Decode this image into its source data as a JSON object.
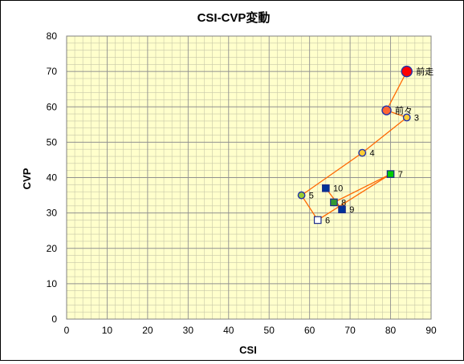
{
  "chart_data": {
    "type": "scatter",
    "title": "CSI-CVP変動",
    "xlabel": "CSI",
    "ylabel": "CVP",
    "xlim": [
      0,
      90
    ],
    "ylim": [
      0,
      80
    ],
    "x_ticks": [
      0,
      10,
      20,
      30,
      40,
      50,
      60,
      70,
      80,
      90
    ],
    "y_ticks": [
      0,
      10,
      20,
      30,
      40,
      50,
      60,
      70,
      80
    ],
    "grid": true,
    "plot_background": "#FFFFCC",
    "line_color": "#FF6600",
    "points": [
      {
        "label": "前走",
        "x": 84,
        "y": 70,
        "marker": "circle",
        "fill": "#FF0000",
        "size": "large"
      },
      {
        "label": "前々",
        "x": 79,
        "y": 59,
        "marker": "circle",
        "fill": "#FF6633",
        "size": "medium"
      },
      {
        "label": "3",
        "x": 84,
        "y": 57,
        "marker": "circle",
        "fill": "#FFCC33",
        "size": "small"
      },
      {
        "label": "4",
        "x": 73,
        "y": 47,
        "marker": "circle",
        "fill": "#FFCC33",
        "size": "small"
      },
      {
        "label": "5",
        "x": 58,
        "y": 35,
        "marker": "circle",
        "fill": "#99CC33",
        "size": "small"
      },
      {
        "label": "6",
        "x": 62,
        "y": 28,
        "marker": "square",
        "fill": "#FFFFFF",
        "size": "small"
      },
      {
        "label": "7",
        "x": 80,
        "y": 41,
        "marker": "square",
        "fill": "#00CC00",
        "size": "small"
      },
      {
        "label": "8",
        "x": 66,
        "y": 33,
        "marker": "square",
        "fill": "#339933",
        "size": "small"
      },
      {
        "label": "9",
        "x": 68,
        "y": 31,
        "marker": "square",
        "fill": "#003399",
        "size": "small"
      },
      {
        "label": "10",
        "x": 64,
        "y": 37,
        "marker": "square",
        "fill": "#003399",
        "size": "small"
      }
    ]
  }
}
